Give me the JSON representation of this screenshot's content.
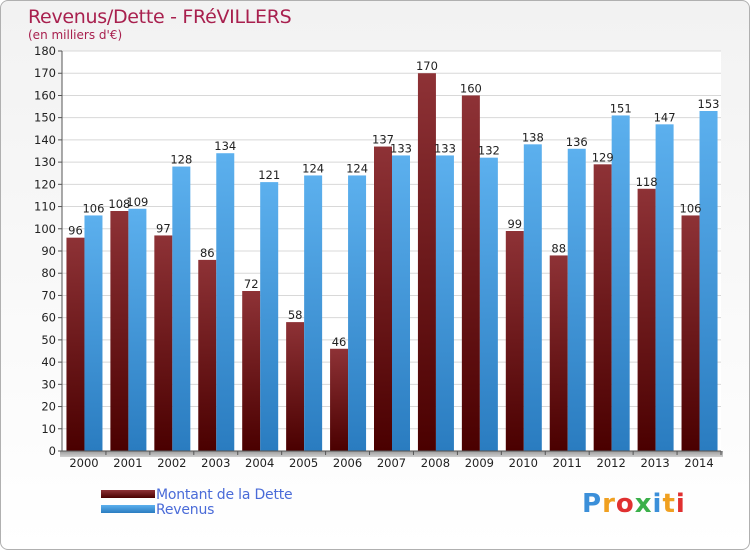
{
  "chart_data": {
    "type": "bar",
    "title": "Revenus/Dette - FRéVILLERS",
    "subtitle": "(en milliers d'€)",
    "categories": [
      "2000",
      "2001",
      "2002",
      "2003",
      "2004",
      "2005",
      "2006",
      "2007",
      "2008",
      "2009",
      "2010",
      "2011",
      "2012",
      "2013",
      "2014"
    ],
    "series": [
      {
        "name": "Montant de la Dette",
        "color": "#7a1e22",
        "values": [
          96,
          108,
          97,
          86,
          72,
          58,
          46,
          137,
          170,
          160,
          99,
          88,
          129,
          118,
          106
        ]
      },
      {
        "name": "Revenus",
        "color": "#4aa4e6",
        "values": [
          106,
          109,
          128,
          134,
          121,
          124,
          124,
          133,
          133,
          132,
          138,
          136,
          151,
          147,
          153
        ]
      }
    ],
    "ylim": [
      0,
      180
    ],
    "ytick_step": 10,
    "grid": true,
    "legend_position": "bottom-left"
  },
  "logo": {
    "text": "Proxiti",
    "letters": [
      {
        "ch": "P",
        "color": "#3b8fd9"
      },
      {
        "ch": "r",
        "color": "#f0a020"
      },
      {
        "ch": "o",
        "color": "#e03030"
      },
      {
        "ch": "x",
        "color": "#3bb04a"
      },
      {
        "ch": "i",
        "color": "#3b8fd9"
      },
      {
        "ch": "t",
        "color": "#f0a020"
      },
      {
        "ch": "i",
        "color": "#e03030"
      }
    ]
  }
}
